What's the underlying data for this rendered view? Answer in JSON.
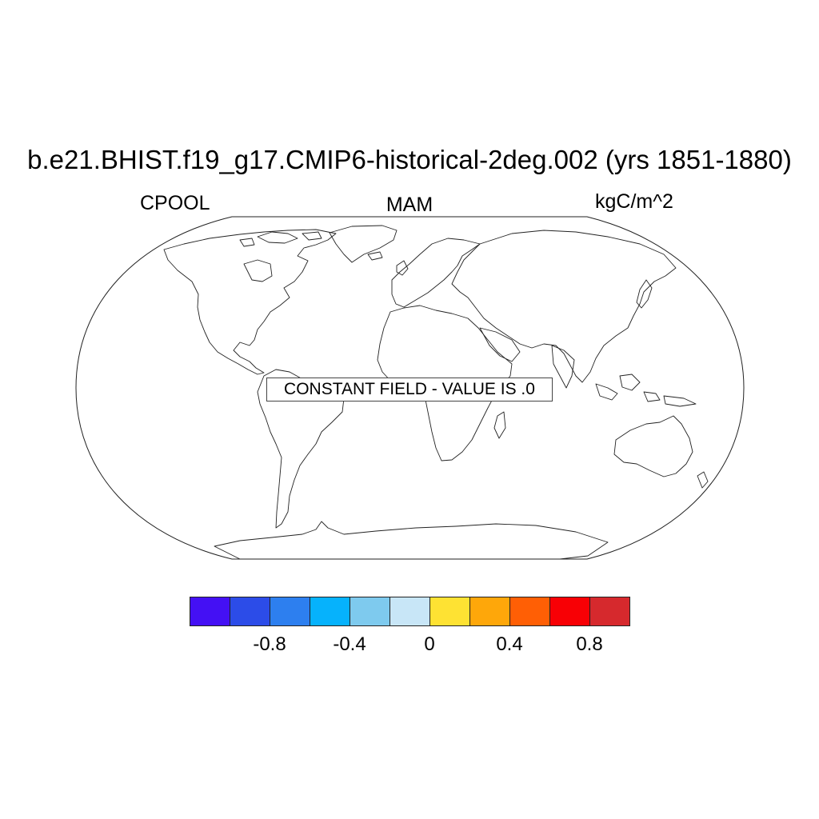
{
  "title": "b.e21.BHIST.f19_g17.CMIP6-historical-2deg.002 (yrs 1851-1880)",
  "left_label": "CPOOL",
  "center_label": "MAM",
  "right_label": "kgC/m^2",
  "notice": "CONSTANT FIELD - VALUE IS .0",
  "projection": "robinson",
  "colorbar": {
    "colors": [
      "#4410f4",
      "#2c4ce8",
      "#2d7fef",
      "#06b2fc",
      "#7ecaee",
      "#c8e6f7",
      "#fee233",
      "#fea70a",
      "#ff5f05",
      "#f80005",
      "#d6292d"
    ],
    "labels": [
      "-0.8",
      "-0.4",
      "0",
      "0.4",
      "0.8"
    ]
  }
}
